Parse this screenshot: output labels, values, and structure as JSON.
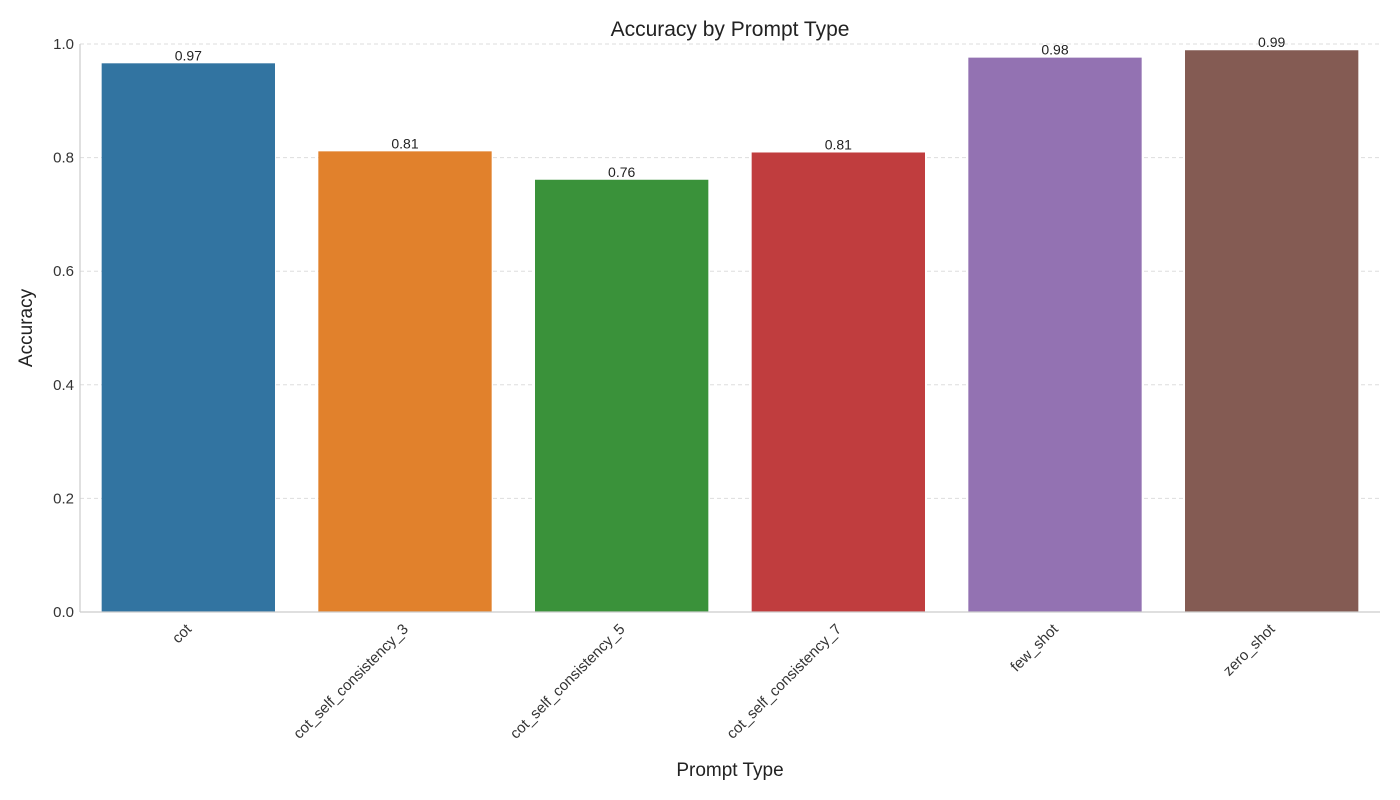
{
  "chart_data": {
    "type": "bar",
    "title": "Accuracy by Prompt Type",
    "xlabel": "Prompt Type",
    "ylabel": "Accuracy",
    "categories": [
      "cot",
      "cot_self_consistency_3",
      "cot_self_consistency_5",
      "cot_self_consistency_7",
      "few_shot",
      "zero_shot"
    ],
    "values": [
      0.966,
      0.811,
      0.761,
      0.809,
      0.976,
      0.989
    ],
    "value_labels": [
      "0.97",
      "0.81",
      "0.76",
      "0.81",
      "0.98",
      "0.99"
    ],
    "colors": [
      "#3274a1",
      "#e1812c",
      "#3a923a",
      "#c03d3e",
      "#9372b2",
      "#845b53"
    ],
    "ylim": [
      0,
      1.0
    ],
    "yticks": [
      0.0,
      0.2,
      0.4,
      0.6,
      0.8,
      1.0
    ],
    "ytick_labels": [
      "0.0",
      "0.2",
      "0.4",
      "0.6",
      "0.8",
      "1.0"
    ],
    "grid": "y-dashed",
    "legend": "none"
  }
}
